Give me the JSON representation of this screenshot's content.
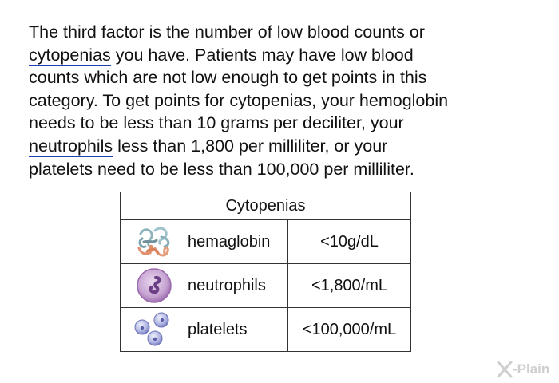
{
  "paragraph": {
    "line1": "The third factor is the number of low blood counts or",
    "line2_link": "cytopenias",
    "line2_rest": " you have. Patients may have low blood",
    "line3": "counts which are not low enough to get points in this",
    "line4": "category. To get points for cytopenias, your hemoglobin",
    "line5": "needs to be less than 10 grams per deciliter, your",
    "line6_link": "neutrophils",
    "line6_rest": " less than 1,800 per milliliter, or your",
    "line7": "platelets need to be less than 100,000 per milliliter."
  },
  "table": {
    "header": "Cytopenias",
    "rows": [
      {
        "name": "hemaglobin",
        "value": "<10g/dL",
        "icon": "hemoglobin-molecule-icon"
      },
      {
        "name": "neutrophils",
        "value": "<1,800/mL",
        "icon": "neutrophil-cell-icon"
      },
      {
        "name": "platelets",
        "value": "<100,000/mL",
        "icon": "platelets-icon"
      }
    ]
  },
  "logo": {
    "text": "-Plain"
  },
  "colors": {
    "link_underline": "#1f3fae",
    "table_border": "#333333",
    "logo": "#cfcfcf"
  }
}
